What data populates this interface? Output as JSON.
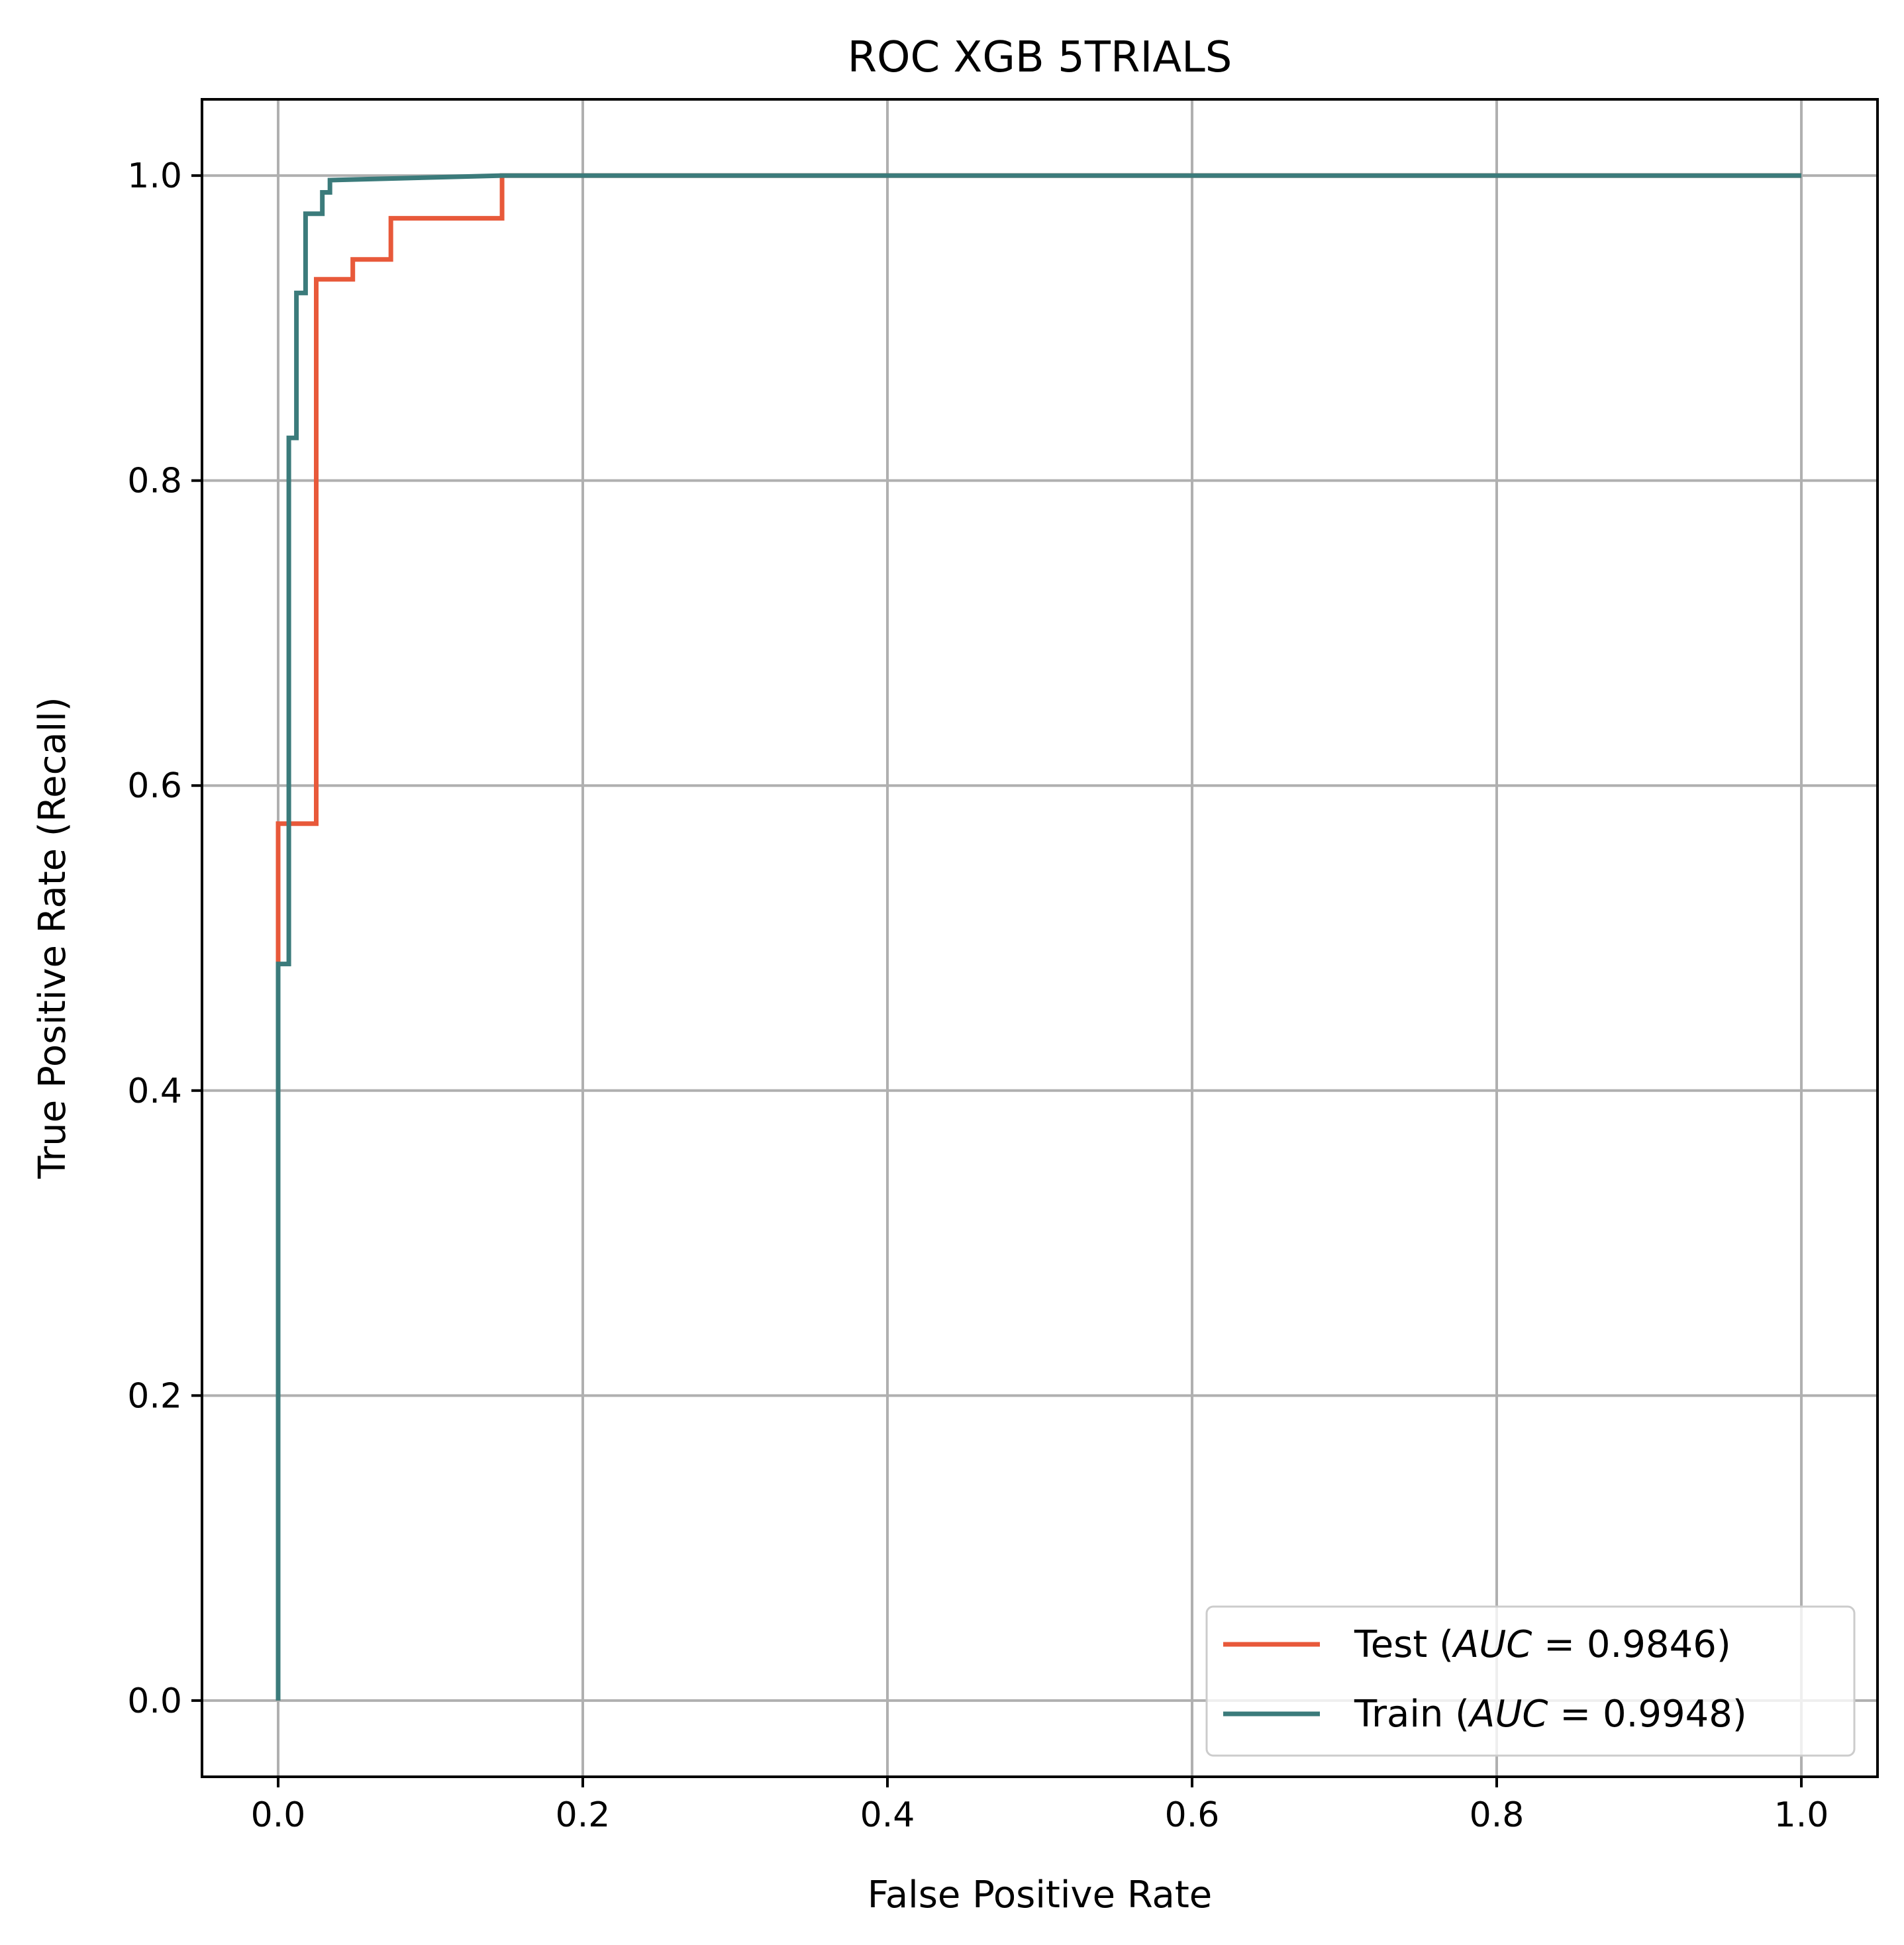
{
  "chart_data": {
    "type": "line",
    "title": "ROC XGB 5TRIALS",
    "xlabel": "False Positive Rate",
    "ylabel": "True Positive Rate (Recall)",
    "xlim": [
      -0.05,
      1.05
    ],
    "ylim": [
      -0.05,
      1.05
    ],
    "xticks": [
      "0.0",
      "0.2",
      "0.4",
      "0.6",
      "0.8",
      "1.0"
    ],
    "yticks": [
      "0.0",
      "0.2",
      "0.4",
      "0.6",
      "0.8",
      "1.0"
    ],
    "grid": true,
    "legend_position": "lower right",
    "series": [
      {
        "name": "Test",
        "auc_label": "0.9846",
        "color": "#e8593a",
        "x": [
          0.0,
          0.0,
          0.0,
          0.025,
          0.025,
          0.049,
          0.049,
          0.074,
          0.074,
          0.147,
          0.147,
          1.0
        ],
        "y": [
          0.0,
          0.487,
          0.575,
          0.575,
          0.932,
          0.932,
          0.945,
          0.945,
          0.972,
          0.972,
          1.0,
          1.0
        ]
      },
      {
        "name": "Train",
        "auc_label": "0.9948",
        "color": "#3b7b7b",
        "x": [
          0.0,
          0.0,
          0.007,
          0.007,
          0.012,
          0.012,
          0.018,
          0.018,
          0.029,
          0.029,
          0.034,
          0.034,
          0.147,
          1.0
        ],
        "y": [
          0.0,
          0.483,
          0.483,
          0.828,
          0.828,
          0.923,
          0.923,
          0.975,
          0.975,
          0.989,
          0.989,
          0.997,
          1.0,
          1.0
        ]
      }
    ]
  }
}
